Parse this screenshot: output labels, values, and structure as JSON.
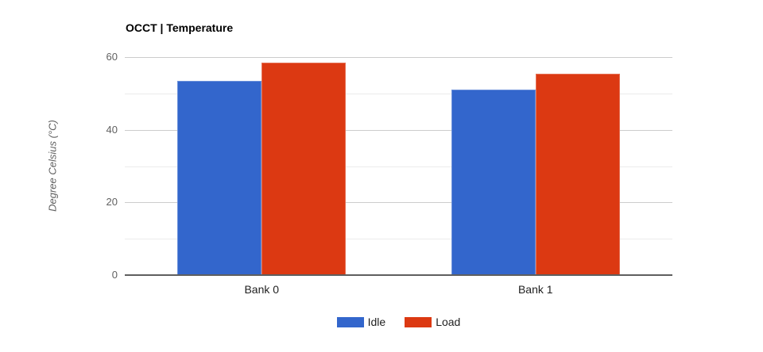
{
  "chart": {
    "title": "OCCT | Temperature",
    "ylabel": "Degree Celsius (°C)"
  },
  "chart_data": {
    "type": "bar",
    "title": "OCCT | Temperature",
    "xlabel": "",
    "ylabel": "Degree Celsius (°C)",
    "categories": [
      "Bank 0",
      "Bank 1"
    ],
    "series": [
      {
        "name": "Idle",
        "color": "#3366cc",
        "values": [
          53.5,
          51
        ]
      },
      {
        "name": "Load",
        "color": "#dc3912",
        "values": [
          58.5,
          55.5
        ]
      }
    ],
    "ylim": [
      0,
      60
    ],
    "yticks": [
      0,
      20,
      40,
      60
    ],
    "gridlines_major": [
      0,
      20,
      40,
      60
    ],
    "gridlines_minor": [
      10,
      30,
      50
    ],
    "grid": true,
    "legend_position": "bottom",
    "legend": [
      "Idle",
      "Load"
    ]
  },
  "colors": {
    "idle_bar": "#3366cc",
    "load_bar": "#dc3912",
    "gridline_major": "#cccccc",
    "gridline_minor": "#ebebeb",
    "baseline": "#5f5f5f",
    "tick_text": "#616161",
    "label_text": "#1f1f1f",
    "background": "#ffffff"
  }
}
